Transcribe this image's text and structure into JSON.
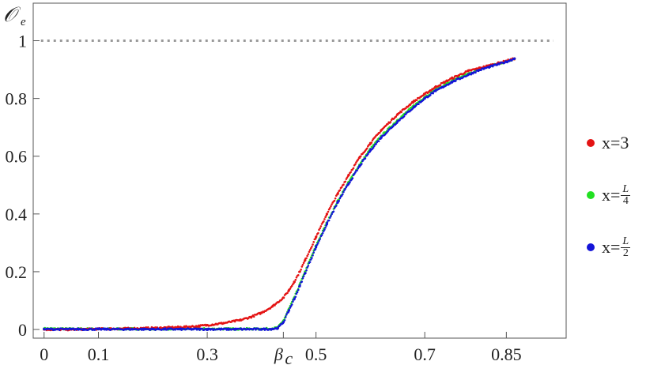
{
  "chart_data": {
    "type": "scatter",
    "ylabel": "𝒪",
    "ylabel_sub": "e",
    "xlim": [
      -0.02,
      0.96
    ],
    "ylim": [
      -0.03,
      1.13
    ],
    "x_ticks": [
      {
        "value": 0,
        "label": "0"
      },
      {
        "value": 0.1,
        "label": "0.1"
      },
      {
        "value": 0.3,
        "label": "0.3"
      },
      {
        "value": 0.44,
        "label": "β",
        "sub": "c"
      },
      {
        "value": 0.5,
        "label": "0.5"
      },
      {
        "value": 0.7,
        "label": "0.7"
      },
      {
        "value": 0.85,
        "label": "0.85"
      }
    ],
    "y_ticks": [
      {
        "value": 0,
        "label": "0"
      },
      {
        "value": 0.2,
        "label": "0.2"
      },
      {
        "value": 0.4,
        "label": "0.4"
      },
      {
        "value": 0.6,
        "label": "0.6"
      },
      {
        "value": 0.8,
        "label": "0.8"
      },
      {
        "value": 1,
        "label": "1"
      }
    ],
    "reference_line": {
      "y": 1,
      "style": "dotted",
      "color": "#999999"
    },
    "series": [
      {
        "name": "x=3",
        "color": "#e41414",
        "x": [
          0.0,
          0.05,
          0.1,
          0.15,
          0.2,
          0.25,
          0.28,
          0.3,
          0.33,
          0.36,
          0.38,
          0.4,
          0.42,
          0.44,
          0.45,
          0.46,
          0.47,
          0.48,
          0.5,
          0.52,
          0.54,
          0.56,
          0.58,
          0.6,
          0.62,
          0.65,
          0.68,
          0.7,
          0.72,
          0.75,
          0.78,
          0.8,
          0.82,
          0.85,
          0.865
        ],
        "y": [
          0.0,
          0.0,
          0.002,
          0.003,
          0.005,
          0.008,
          0.011,
          0.015,
          0.022,
          0.032,
          0.043,
          0.058,
          0.08,
          0.11,
          0.135,
          0.165,
          0.2,
          0.24,
          0.32,
          0.4,
          0.47,
          0.535,
          0.595,
          0.645,
          0.69,
          0.745,
          0.79,
          0.815,
          0.84,
          0.87,
          0.895,
          0.905,
          0.915,
          0.93,
          0.938
        ]
      },
      {
        "name": "x=",
        "name_frac": [
          "L",
          "4"
        ],
        "color": "#22e022",
        "x": [
          0.0,
          0.05,
          0.1,
          0.15,
          0.2,
          0.25,
          0.3,
          0.35,
          0.4,
          0.42,
          0.43,
          0.44,
          0.45,
          0.46,
          0.47,
          0.48,
          0.5,
          0.52,
          0.54,
          0.56,
          0.58,
          0.6,
          0.62,
          0.65,
          0.68,
          0.7,
          0.72,
          0.75,
          0.78,
          0.8,
          0.82,
          0.85,
          0.865
        ],
        "y": [
          0.003,
          0.002,
          0.002,
          0.002,
          0.002,
          0.002,
          0.002,
          0.002,
          0.002,
          0.003,
          0.007,
          0.03,
          0.07,
          0.11,
          0.155,
          0.2,
          0.29,
          0.37,
          0.445,
          0.51,
          0.57,
          0.625,
          0.67,
          0.725,
          0.775,
          0.805,
          0.83,
          0.86,
          0.885,
          0.9,
          0.912,
          0.928,
          0.938
        ]
      },
      {
        "name": "x=",
        "name_frac": [
          "L",
          "2"
        ],
        "color": "#1414d8",
        "x": [
          0.0,
          0.05,
          0.1,
          0.15,
          0.2,
          0.25,
          0.3,
          0.35,
          0.4,
          0.42,
          0.43,
          0.44,
          0.45,
          0.46,
          0.47,
          0.48,
          0.5,
          0.52,
          0.54,
          0.56,
          0.58,
          0.6,
          0.62,
          0.65,
          0.68,
          0.7,
          0.72,
          0.75,
          0.78,
          0.8,
          0.82,
          0.85,
          0.865
        ],
        "y": [
          0.001,
          0.001,
          0.001,
          0.001,
          0.001,
          0.001,
          0.001,
          0.001,
          0.001,
          0.002,
          0.005,
          0.025,
          0.065,
          0.105,
          0.15,
          0.195,
          0.285,
          0.365,
          0.44,
          0.505,
          0.565,
          0.62,
          0.665,
          0.72,
          0.77,
          0.8,
          0.826,
          0.857,
          0.882,
          0.898,
          0.91,
          0.927,
          0.938
        ]
      }
    ]
  }
}
